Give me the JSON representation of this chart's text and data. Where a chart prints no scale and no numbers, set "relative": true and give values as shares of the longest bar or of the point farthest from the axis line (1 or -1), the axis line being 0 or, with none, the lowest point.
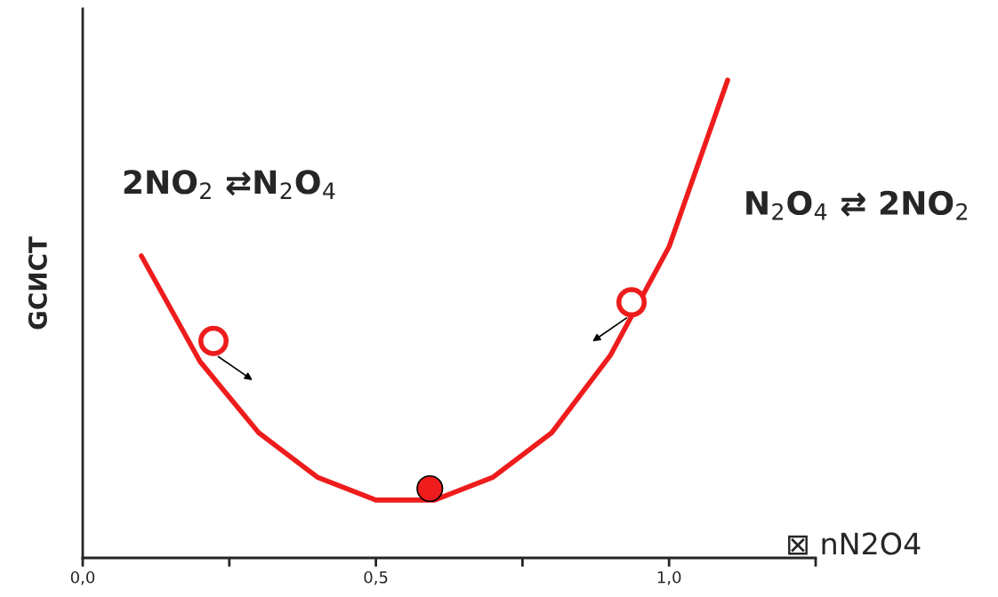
{
  "chart_data": {
    "type": "line",
    "relative": true,
    "ylabel": "GСИСТ",
    "xlabel": "⊠ nN2O4",
    "annotations": [
      "2NO$_{2}$ ⇄N$_{2}$O$_{4}$",
      "N$_{2}$O$_{4}$ ⇄ 2NO$_{2}$"
    ],
    "xlim": [
      0,
      1.25
    ],
    "xticks": [
      {
        "value": 0,
        "label": "0,0"
      },
      {
        "value": 0.25,
        "label": null
      },
      {
        "value": 0.5,
        "label": "0,5"
      },
      {
        "value": 0.75,
        "label": null
      },
      {
        "value": 1.0,
        "label": "1,0"
      },
      {
        "value": 1.25,
        "label": null
      }
    ],
    "grid": false,
    "legend": false,
    "series": [
      {
        "color": "#ee1c1c",
        "marker": "none",
        "x": [
          0.1,
          0.2,
          0.3,
          0.4,
          0.5,
          0.6,
          0.7,
          0.8,
          0.9,
          1.0,
          1.1
        ],
        "values": [
          0.632,
          0.411,
          0.262,
          0.169,
          0.121,
          0.121,
          0.169,
          0.262,
          0.424,
          0.651,
          1.0
        ]
      },
      {
        "type": "scatter",
        "color": "#ee1c1c",
        "marker": "circle",
        "x": [
          0.223,
          0.936
        ],
        "values": [
          0.454,
          0.535
        ]
      },
      {
        "type": "scatter",
        "color": "#ee1c1c",
        "marker": "circle",
        "x": [
          0.592
        ],
        "values": [
          0.145
        ]
      }
    ]
  }
}
